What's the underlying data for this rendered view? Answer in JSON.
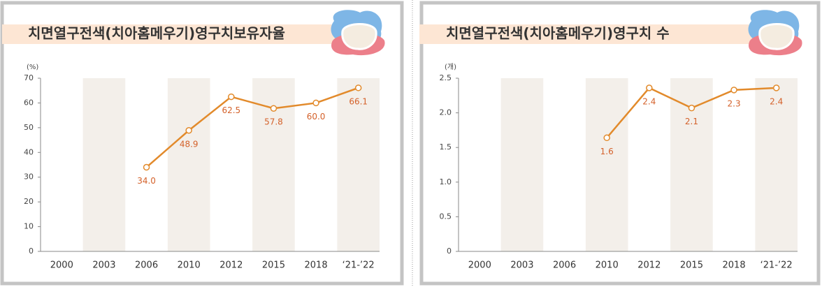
{
  "chart_data": [
    {
      "type": "line",
      "title": "치면열구전색(치아홈메우기)영구치보유자율",
      "y_unit": "(%)",
      "categories": [
        "2000",
        "2003",
        "2006",
        "2010",
        "2012",
        "2015",
        "2018",
        "‘21-’22"
      ],
      "values": [
        null,
        null,
        34,
        48.9,
        62.5,
        57.8,
        60,
        66.1
      ],
      "value_labels": [
        null,
        null,
        "34.0",
        "48.9",
        "62.5",
        "57.8",
        "60.0",
        "66.1"
      ],
      "color": "#e28a2b",
      "ylim": [
        0,
        70
      ],
      "yticks": [
        0,
        10,
        20,
        30,
        40,
        50,
        60,
        70
      ]
    },
    {
      "type": "line",
      "title": "치면열구전색(치아홈메우기)영구치 수",
      "y_unit": "(개)",
      "categories": [
        "2000",
        "2003",
        "2006",
        "2010",
        "2012",
        "2015",
        "2018",
        "‘21-’22"
      ],
      "values": [
        null,
        null,
        null,
        1.64,
        2.36,
        2.07,
        2.33,
        2.36
      ],
      "value_labels": [
        null,
        null,
        null,
        "1.6",
        "2.4",
        "2.1",
        "2.3",
        "2.4"
      ],
      "color": "#e28a2b",
      "ylim": [
        0,
        2.5
      ],
      "yticks": [
        0,
        0.5,
        {
          "value": 1,
          "label": "1.0"
        },
        1.5,
        {
          "value": 2,
          "label": "2.0"
        },
        2.5
      ]
    }
  ]
}
